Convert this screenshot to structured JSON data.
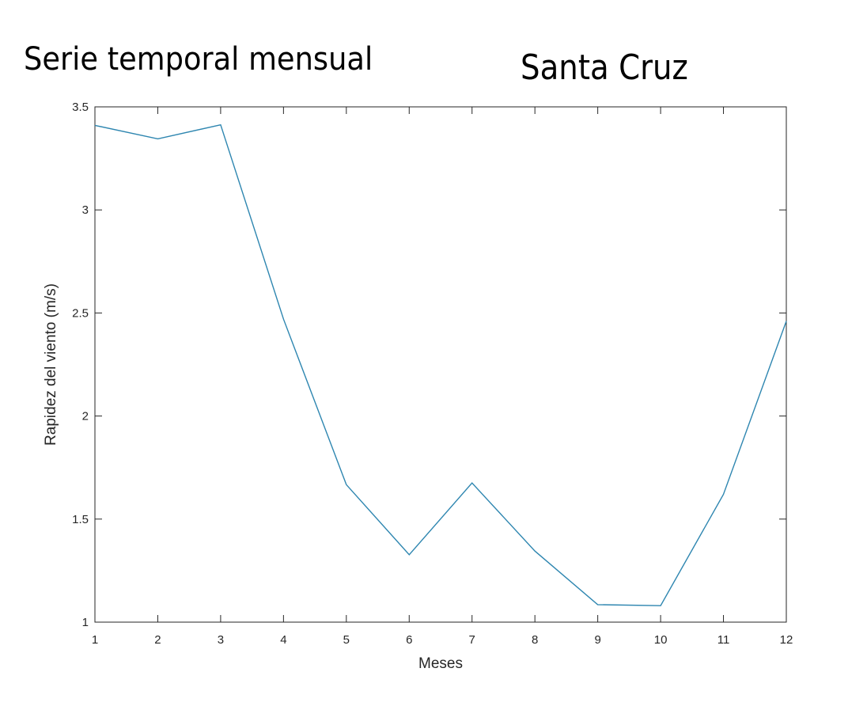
{
  "header": {
    "title": "Serie temporal mensual",
    "location": "Santa Cruz"
  },
  "chart_data": {
    "type": "line",
    "title": "Serie temporal mensual",
    "subtitle": "Santa Cruz",
    "xlabel": "Meses",
    "ylabel": "Rapidez del viento (m/s)",
    "xlim": [
      1,
      12
    ],
    "ylim": [
      1,
      3.5
    ],
    "xticks": [
      1,
      2,
      3,
      4,
      5,
      6,
      7,
      8,
      9,
      10,
      11,
      12
    ],
    "xtick_labels": [
      "1",
      "2",
      "3",
      "4",
      "5",
      "6",
      "7",
      "8",
      "9",
      "10",
      "11",
      "12"
    ],
    "yticks": [
      1,
      1.5,
      2,
      2.5,
      3,
      3.5
    ],
    "ytick_labels": [
      "1",
      "1.5",
      "2",
      "2.5",
      "3",
      "3.5"
    ],
    "grid": false,
    "series": [
      {
        "color": "#2e86b0",
        "x": [
          1,
          2,
          3,
          4,
          5,
          6,
          7,
          8,
          9,
          10,
          11,
          12
        ],
        "values": [
          3.41,
          3.345,
          3.413,
          2.47,
          1.667,
          1.327,
          1.675,
          1.345,
          1.085,
          1.08,
          1.62,
          2.46
        ]
      }
    ]
  }
}
